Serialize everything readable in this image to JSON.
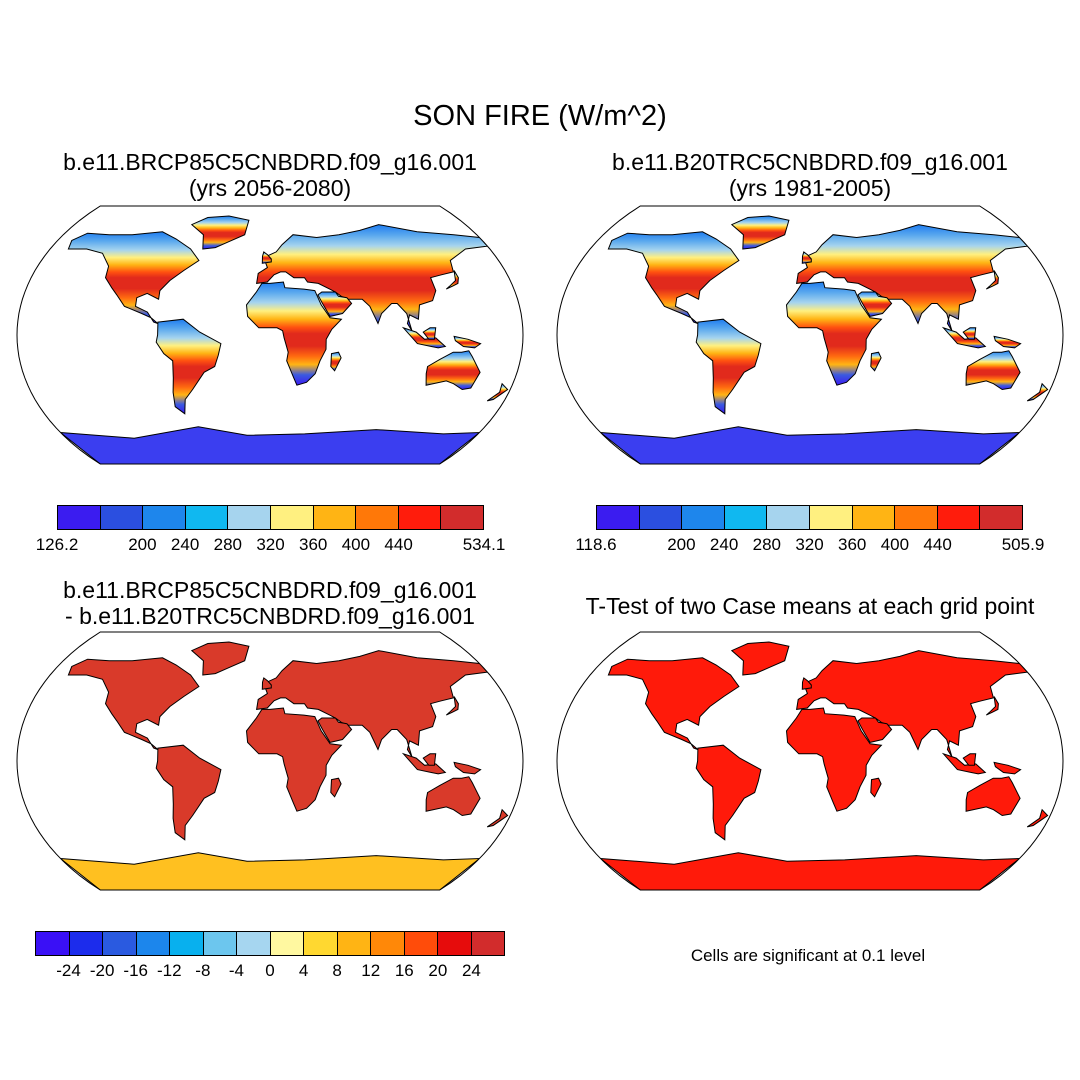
{
  "title": "SON FIRE (W/m^2)",
  "panels": [
    {
      "title_line1": "b.e11.BRCP85C5CNBDRD.f09_g16.001",
      "title_line2": "(yrs 2056-2080)"
    },
    {
      "title_line1": "b.e11.B20TRC5CNBDRD.f09_g16.001",
      "title_line2": "(yrs 1981-2005)"
    },
    {
      "title_line1": "b.e11.BRCP85C5CNBDRD.f09_g16.001",
      "title_line2": "- b.e11.B20TRC5CNBDRD.f09_g16.001"
    },
    {
      "title_line1": "T-Test of two Case means at each grid point",
      "title_line2": ""
    }
  ],
  "colorbars": {
    "case1": {
      "colors": [
        "#3b1cf0",
        "#2b4fe0",
        "#1e86ec",
        "#10b8f0",
        "#a6d4ee",
        "#fff080",
        "#ffb414",
        "#ff7808",
        "#ff1c0c",
        "#d22c2c"
      ],
      "labels": [
        "126.2",
        "200",
        "240",
        "280",
        "320",
        "360",
        "400",
        "440",
        "534.1"
      ]
    },
    "case2": {
      "colors": [
        "#3b1cf0",
        "#2b4fe0",
        "#1e86ec",
        "#10b8f0",
        "#a6d4ee",
        "#fff080",
        "#ffb414",
        "#ff7808",
        "#ff1c0c",
        "#d22c2c"
      ],
      "labels": [
        "118.6",
        "200",
        "240",
        "280",
        "320",
        "360",
        "400",
        "440",
        "505.9"
      ]
    },
    "diff": {
      "colors": [
        "#3a10f6",
        "#1c2cec",
        "#2a5ae0",
        "#1c86ec",
        "#08b0ee",
        "#6cc6ee",
        "#a6d6f0",
        "#fff8a0",
        "#ffd830",
        "#ffb414",
        "#ff8808",
        "#ff4c0a",
        "#e60c0c",
        "#d22c2c"
      ],
      "labels": [
        "-24",
        "-20",
        "-16",
        "-12",
        "-8",
        "-4",
        "0",
        "4",
        "8",
        "12",
        "16",
        "20",
        "24"
      ]
    }
  },
  "significance_note": "Cells are significant at 0.1 level",
  "colors": {
    "significant_fill": "#ff1a0a",
    "diff_land": "#d93a2a",
    "diff_antarctica": "#ffc020"
  }
}
